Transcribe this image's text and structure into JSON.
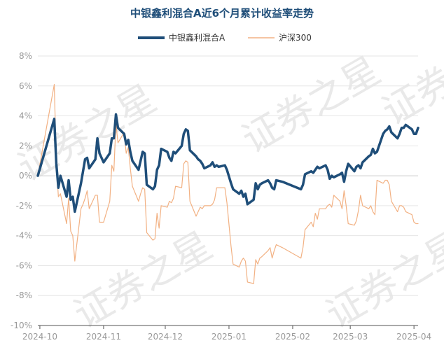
{
  "chart_data": {
    "type": "line",
    "title": "中银鑫利混合A近6个月累计收益率走势",
    "watermark": "证券之星",
    "ylim": [
      -10,
      8
    ],
    "y_ticks": [
      "8%",
      "6%",
      "4%",
      "2%",
      "0%",
      "-2%",
      "-4%",
      "-6%",
      "-8%",
      "-10%"
    ],
    "x_ticks": [
      "2024-10",
      "2024-11",
      "2024-12",
      "2025-01",
      "2025-02",
      "2025-03",
      "2025-04"
    ],
    "grid": true,
    "legend_position": "top-center",
    "series": [
      {
        "name": "中银鑫利混合A",
        "color": "#1f4e79",
        "points": [
          [
            "2024-09-30",
            0.0
          ],
          [
            "2024-10-08",
            3.8
          ],
          [
            "2024-10-09",
            0.8
          ],
          [
            "2024-10-10",
            -0.8
          ],
          [
            "2024-10-11",
            0.0
          ],
          [
            "2024-10-14",
            -1.4
          ],
          [
            "2024-10-15",
            -0.3
          ],
          [
            "2024-10-16",
            -1.6
          ],
          [
            "2024-10-17",
            -1.4
          ],
          [
            "2024-10-18",
            -2.4
          ],
          [
            "2024-10-21",
            -0.5
          ],
          [
            "2024-10-22",
            0.3
          ],
          [
            "2024-10-23",
            1.1
          ],
          [
            "2024-10-24",
            1.2
          ],
          [
            "2024-10-25",
            0.5
          ],
          [
            "2024-10-28",
            1.1
          ],
          [
            "2024-10-29",
            2.5
          ],
          [
            "2024-10-30",
            1.5
          ],
          [
            "2024-10-31",
            1.2
          ],
          [
            "2024-11-01",
            0.9
          ],
          [
            "2024-11-04",
            1.5
          ],
          [
            "2024-11-05",
            2.5
          ],
          [
            "2024-11-06",
            2.5
          ],
          [
            "2024-11-07",
            4.1
          ],
          [
            "2024-11-08",
            3.2
          ],
          [
            "2024-11-11",
            2.8
          ],
          [
            "2024-11-12",
            2.1
          ],
          [
            "2024-11-13",
            2.4
          ],
          [
            "2024-11-14",
            1.6
          ],
          [
            "2024-11-15",
            1.0
          ],
          [
            "2024-11-18",
            0.4
          ],
          [
            "2024-11-19",
            1.0
          ],
          [
            "2024-11-20",
            1.6
          ],
          [
            "2024-11-21",
            1.5
          ],
          [
            "2024-11-22",
            -0.6
          ],
          [
            "2024-11-25",
            -0.9
          ],
          [
            "2024-11-26",
            -0.7
          ],
          [
            "2024-11-27",
            0.4
          ],
          [
            "2024-11-28",
            0.7
          ],
          [
            "2024-11-29",
            1.8
          ],
          [
            "2024-12-02",
            1.6
          ],
          [
            "2024-12-03",
            1.2
          ],
          [
            "2024-12-04",
            1.0
          ],
          [
            "2024-12-05",
            1.6
          ],
          [
            "2024-12-06",
            1.5
          ],
          [
            "2024-12-09",
            2.0
          ],
          [
            "2024-12-10",
            2.8
          ],
          [
            "2024-12-11",
            3.1
          ],
          [
            "2024-12-12",
            3.0
          ],
          [
            "2024-12-13",
            1.7
          ],
          [
            "2024-12-16",
            1.3
          ],
          [
            "2024-12-17",
            1.1
          ],
          [
            "2024-12-18",
            1.0
          ],
          [
            "2024-12-19",
            0.8
          ],
          [
            "2024-12-20",
            0.5
          ],
          [
            "2024-12-23",
            0.7
          ],
          [
            "2024-12-24",
            0.9
          ],
          [
            "2024-12-25",
            0.6
          ],
          [
            "2024-12-26",
            0.7
          ],
          [
            "2024-12-27",
            0.6
          ],
          [
            "2024-12-30",
            0.7
          ],
          [
            "2024-12-31",
            0.4
          ],
          [
            "2025-01-02",
            -0.5
          ],
          [
            "2025-01-03",
            -0.9
          ],
          [
            "2025-01-06",
            -1.2
          ],
          [
            "2025-01-07",
            -1.0
          ],
          [
            "2025-01-08",
            -1.4
          ],
          [
            "2025-01-09",
            -1.2
          ],
          [
            "2025-01-10",
            -1.9
          ],
          [
            "2025-01-13",
            -1.6
          ],
          [
            "2025-01-14",
            -0.5
          ],
          [
            "2025-01-15",
            -0.9
          ],
          [
            "2025-01-16",
            -0.6
          ],
          [
            "2025-01-17",
            -0.5
          ],
          [
            "2025-01-20",
            -0.3
          ],
          [
            "2025-01-21",
            -0.5
          ],
          [
            "2025-01-22",
            -0.8
          ],
          [
            "2025-01-23",
            -0.9
          ],
          [
            "2025-01-24",
            -0.3
          ],
          [
            "2025-01-27",
            -0.4
          ],
          [
            "2025-02-05",
            -0.9
          ],
          [
            "2025-02-06",
            -0.6
          ],
          [
            "2025-02-07",
            0.1
          ],
          [
            "2025-02-10",
            0.3
          ],
          [
            "2025-02-11",
            0.2
          ],
          [
            "2025-02-12",
            0.4
          ],
          [
            "2025-02-13",
            0.6
          ],
          [
            "2025-02-14",
            0.5
          ],
          [
            "2025-02-17",
            0.7
          ],
          [
            "2025-02-18",
            0.4
          ],
          [
            "2025-02-19",
            -0.2
          ],
          [
            "2025-02-20",
            0.0
          ],
          [
            "2025-02-21",
            -0.1
          ],
          [
            "2025-02-24",
            0.1
          ],
          [
            "2025-02-25",
            0.2
          ],
          [
            "2025-02-26",
            -0.4
          ],
          [
            "2025-02-27",
            0.3
          ],
          [
            "2025-02-28",
            0.8
          ],
          [
            "2025-03-03",
            0.3
          ],
          [
            "2025-03-04",
            0.6
          ],
          [
            "2025-03-05",
            0.7
          ],
          [
            "2025-03-06",
            0.5
          ],
          [
            "2025-03-07",
            0.9
          ],
          [
            "2025-03-10",
            1.3
          ],
          [
            "2025-03-11",
            1.4
          ],
          [
            "2025-03-12",
            1.8
          ],
          [
            "2025-03-13",
            1.5
          ],
          [
            "2025-03-14",
            1.6
          ],
          [
            "2025-03-17",
            2.8
          ],
          [
            "2025-03-18",
            3.0
          ],
          [
            "2025-03-19",
            3.1
          ],
          [
            "2025-03-20",
            3.3
          ],
          [
            "2025-03-21",
            2.9
          ],
          [
            "2025-03-24",
            2.5
          ],
          [
            "2025-03-25",
            2.8
          ],
          [
            "2025-03-26",
            3.2
          ],
          [
            "2025-03-27",
            3.2
          ],
          [
            "2025-03-28",
            3.4
          ],
          [
            "2025-03-31",
            3.1
          ],
          [
            "2025-04-01",
            2.8
          ],
          [
            "2025-04-02",
            2.8
          ],
          [
            "2025-04-03",
            3.2
          ]
        ]
      },
      {
        "name": "沪深300",
        "color": "#f2b183",
        "points": [
          [
            "2024-09-30",
            0.0
          ],
          [
            "2024-10-08",
            6.1
          ],
          [
            "2024-10-09",
            0.9
          ],
          [
            "2024-10-10",
            -1.4
          ],
          [
            "2024-10-11",
            -1.2
          ],
          [
            "2024-10-14",
            -3.2
          ],
          [
            "2024-10-15",
            -1.5
          ],
          [
            "2024-10-16",
            -3.7
          ],
          [
            "2024-10-17",
            -4.0
          ],
          [
            "2024-10-18",
            -5.7
          ],
          [
            "2024-10-21",
            -2.2
          ],
          [
            "2024-10-22",
            -1.9
          ],
          [
            "2024-10-23",
            -1.5
          ],
          [
            "2024-10-24",
            -1.0
          ],
          [
            "2024-10-25",
            -2.2
          ],
          [
            "2024-10-28",
            -1.3
          ],
          [
            "2024-10-29",
            -1.3
          ],
          [
            "2024-10-30",
            -3.1
          ],
          [
            "2024-10-31",
            -3.1
          ],
          [
            "2024-11-01",
            -3.1
          ],
          [
            "2024-11-04",
            -1.7
          ],
          [
            "2024-11-05",
            0.7
          ],
          [
            "2024-11-06",
            0.3
          ],
          [
            "2024-11-07",
            3.5
          ],
          [
            "2024-11-08",
            2.2
          ],
          [
            "2024-11-11",
            2.9
          ],
          [
            "2024-11-12",
            1.5
          ],
          [
            "2024-11-13",
            1.9
          ],
          [
            "2024-11-14",
            0.5
          ],
          [
            "2024-11-15",
            -0.7
          ],
          [
            "2024-11-18",
            -1.7
          ],
          [
            "2024-11-19",
            -1.2
          ],
          [
            "2024-11-20",
            -0.8
          ],
          [
            "2024-11-21",
            -0.9
          ],
          [
            "2024-11-22",
            -3.8
          ],
          [
            "2024-11-25",
            -4.3
          ],
          [
            "2024-11-26",
            -4.2
          ],
          [
            "2024-11-27",
            -2.5
          ],
          [
            "2024-11-28",
            -3.5
          ],
          [
            "2024-11-29",
            -2.0
          ],
          [
            "2024-12-02",
            -2.1
          ],
          [
            "2024-12-03",
            -1.7
          ],
          [
            "2024-12-04",
            -1.8
          ],
          [
            "2024-12-05",
            -1.5
          ],
          [
            "2024-12-06",
            -0.7
          ],
          [
            "2024-12-09",
            -0.8
          ],
          [
            "2024-12-10",
            0.8
          ],
          [
            "2024-12-11",
            1.0
          ],
          [
            "2024-12-12",
            0.9
          ],
          [
            "2024-12-13",
            -1.7
          ],
          [
            "2024-12-16",
            -2.7
          ],
          [
            "2024-12-17",
            -2.4
          ],
          [
            "2024-12-18",
            -2.1
          ],
          [
            "2024-12-19",
            -2.2
          ],
          [
            "2024-12-20",
            -2.0
          ],
          [
            "2024-12-23",
            -2.0
          ],
          [
            "2024-12-24",
            -1.9
          ],
          [
            "2024-12-25",
            -1.6
          ],
          [
            "2024-12-26",
            -0.8
          ],
          [
            "2024-12-27",
            -0.8
          ],
          [
            "2024-12-30",
            -0.8
          ],
          [
            "2024-12-31",
            -1.8
          ],
          [
            "2025-01-02",
            -4.7
          ],
          [
            "2025-01-03",
            -5.9
          ],
          [
            "2025-01-06",
            -6.1
          ],
          [
            "2025-01-07",
            -5.7
          ],
          [
            "2025-01-08",
            -5.5
          ],
          [
            "2025-01-09",
            -5.7
          ],
          [
            "2025-01-10",
            -7.1
          ],
          [
            "2025-01-13",
            -7.2
          ],
          [
            "2025-01-14",
            -5.6
          ],
          [
            "2025-01-15",
            -5.9
          ],
          [
            "2025-01-16",
            -5.5
          ],
          [
            "2025-01-17",
            -5.4
          ],
          [
            "2025-01-20",
            -5.0
          ],
          [
            "2025-01-21",
            -4.8
          ],
          [
            "2025-01-22",
            -5.5
          ],
          [
            "2025-01-23",
            -5.0
          ],
          [
            "2025-01-24",
            -4.6
          ],
          [
            "2025-01-27",
            -4.8
          ],
          [
            "2025-02-05",
            -5.5
          ],
          [
            "2025-02-06",
            -4.8
          ],
          [
            "2025-02-07",
            -3.6
          ],
          [
            "2025-02-10",
            -3.1
          ],
          [
            "2025-02-11",
            -3.4
          ],
          [
            "2025-02-12",
            -2.5
          ],
          [
            "2025-02-13",
            -2.9
          ],
          [
            "2025-02-14",
            -2.2
          ],
          [
            "2025-02-17",
            -2.2
          ],
          [
            "2025-02-18",
            -2.0
          ],
          [
            "2025-02-19",
            -1.9
          ],
          [
            "2025-02-20",
            -2.1
          ],
          [
            "2025-02-21",
            -1.3
          ],
          [
            "2025-02-24",
            -1.7
          ],
          [
            "2025-02-25",
            -2.2
          ],
          [
            "2025-02-26",
            -1.0
          ],
          [
            "2025-02-27",
            -2.0
          ],
          [
            "2025-02-28",
            -3.2
          ],
          [
            "2025-03-03",
            -3.3
          ],
          [
            "2025-03-04",
            -3.0
          ],
          [
            "2025-03-05",
            -2.3
          ],
          [
            "2025-03-06",
            -1.3
          ],
          [
            "2025-03-07",
            -2.0
          ],
          [
            "2025-03-10",
            -2.2
          ],
          [
            "2025-03-11",
            -2.0
          ],
          [
            "2025-03-12",
            -2.4
          ],
          [
            "2025-03-13",
            -2.6
          ],
          [
            "2025-03-14",
            -0.3
          ],
          [
            "2025-03-17",
            -0.5
          ],
          [
            "2025-03-18",
            -0.3
          ],
          [
            "2025-03-19",
            -0.3
          ],
          [
            "2025-03-20",
            -0.6
          ],
          [
            "2025-03-21",
            -1.7
          ],
          [
            "2025-03-24",
            -2.4
          ],
          [
            "2025-03-25",
            -2.0
          ],
          [
            "2025-03-26",
            -2.0
          ],
          [
            "2025-03-27",
            -2.1
          ],
          [
            "2025-03-28",
            -2.4
          ],
          [
            "2025-03-31",
            -2.6
          ],
          [
            "2025-04-01",
            -3.1
          ],
          [
            "2025-04-02",
            -3.2
          ],
          [
            "2025-04-03",
            -3.2
          ]
        ]
      }
    ]
  }
}
